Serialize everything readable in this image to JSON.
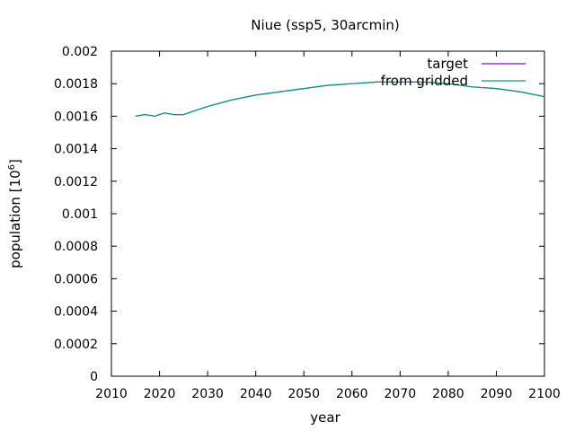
{
  "chart_data": {
    "type": "line",
    "title": "Niue (ssp5, 30arcmin)",
    "xlabel": "year",
    "ylabel_base": "population [10",
    "ylabel_exp": "6",
    "ylabel_close": "]",
    "xlim": [
      2010,
      2100
    ],
    "ylim": [
      0,
      0.002
    ],
    "x_ticks": [
      "2010",
      "2020",
      "2030",
      "2040",
      "2050",
      "2060",
      "2070",
      "2080",
      "2090",
      "2100"
    ],
    "y_ticks": [
      "0",
      "0.0002",
      "0.0004",
      "0.0006",
      "0.0008",
      "0.001",
      "0.0012",
      "0.0014",
      "0.0016",
      "0.0018",
      "0.002"
    ],
    "grid": false,
    "legend_position": "top-right",
    "series": [
      {
        "name": "target",
        "color": "#9400d3",
        "x": [
          2015,
          2017,
          2019,
          2021,
          2023,
          2025,
          2027,
          2030,
          2035,
          2040,
          2045,
          2050,
          2055,
          2060,
          2065,
          2070,
          2075,
          2080,
          2085,
          2090,
          2095,
          2100
        ],
        "y": [
          0.0016,
          0.00161,
          0.0016,
          0.00162,
          0.00161,
          0.00161,
          0.00163,
          0.00166,
          0.0017,
          0.00173,
          0.00175,
          0.00177,
          0.00179,
          0.0018,
          0.00181,
          0.00181,
          0.00181,
          0.0018,
          0.00178,
          0.00177,
          0.00175,
          0.00172
        ]
      },
      {
        "name": "from gridded",
        "color": "#009e73",
        "x": [
          2015,
          2017,
          2019,
          2021,
          2023,
          2025,
          2027,
          2030,
          2035,
          2040,
          2045,
          2050,
          2055,
          2060,
          2065,
          2070,
          2075,
          2080,
          2085,
          2090,
          2095,
          2100
        ],
        "y": [
          0.0016,
          0.00161,
          0.0016,
          0.00162,
          0.00161,
          0.00161,
          0.00163,
          0.00166,
          0.0017,
          0.00173,
          0.00175,
          0.00177,
          0.00179,
          0.0018,
          0.00181,
          0.00181,
          0.00181,
          0.0018,
          0.00178,
          0.00177,
          0.00175,
          0.00172
        ]
      }
    ]
  }
}
